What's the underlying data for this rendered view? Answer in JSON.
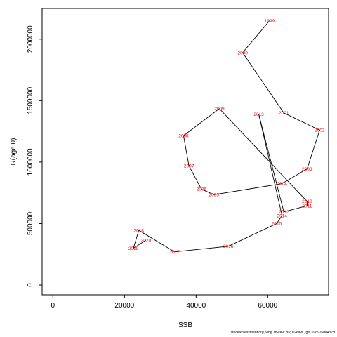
{
  "chart_data": {
    "type": "line",
    "title": "",
    "xlabel": "SSB",
    "ylabel": "R(age 0)",
    "xlim": [
      -3000,
      77000
    ],
    "ylim": [
      -80000,
      2250000
    ],
    "x_ticks": [
      0,
      20000,
      40000,
      60000
    ],
    "x_tick_labels": [
      "0",
      "20000",
      "40000",
      "60000"
    ],
    "y_ticks": [
      0,
      500000,
      1000000,
      1500000,
      2000000
    ],
    "y_tick_labels": [
      "0",
      "500000",
      "1000000",
      "1500000",
      "2000000"
    ],
    "grid": false,
    "line_color": "#000000",
    "label_color": "#ff0000",
    "points": [
      {
        "year": "1999",
        "x": 60500,
        "y": 2150000
      },
      {
        "year": "2000",
        "x": 53000,
        "y": 1890000
      },
      {
        "year": "2001",
        "x": 64500,
        "y": 1400000
      },
      {
        "year": "2002",
        "x": 74500,
        "y": 1260000
      },
      {
        "year": "2003",
        "x": 71000,
        "y": 945000
      },
      {
        "year": "2004",
        "x": 64000,
        "y": 825000
      },
      {
        "year": "2005",
        "x": 45000,
        "y": 735000
      },
      {
        "year": "2006",
        "x": 41500,
        "y": 780000
      },
      {
        "year": "2007",
        "x": 38000,
        "y": 970000
      },
      {
        "year": "2008",
        "x": 36500,
        "y": 1215000
      },
      {
        "year": "2009",
        "x": 46500,
        "y": 1435000
      },
      {
        "year": "2010",
        "x": 71000,
        "y": 680000
      },
      {
        "year": "2011",
        "x": 71000,
        "y": 645000
      },
      {
        "year": "2012",
        "x": 64500,
        "y": 595000
      },
      {
        "year": "2013",
        "x": 57500,
        "y": 1390000
      },
      {
        "year": "2014",
        "x": 64000,
        "y": 565000
      },
      {
        "year": "2015",
        "x": 62500,
        "y": 500000
      },
      {
        "year": "2016",
        "x": 49000,
        "y": 315000
      },
      {
        "year": "2017",
        "x": 34000,
        "y": 270000
      },
      {
        "year": "2018",
        "x": 24000,
        "y": 445000
      },
      {
        "year": "2019",
        "x": 22500,
        "y": 300000
      },
      {
        "year": "2020",
        "x": 26000,
        "y": 365000
      }
    ]
  },
  "footer": {
    "text": "stockassessment.org,  whg.7b-ce-k  BP,  r14968 ,  git:  69d926d0437d"
  }
}
